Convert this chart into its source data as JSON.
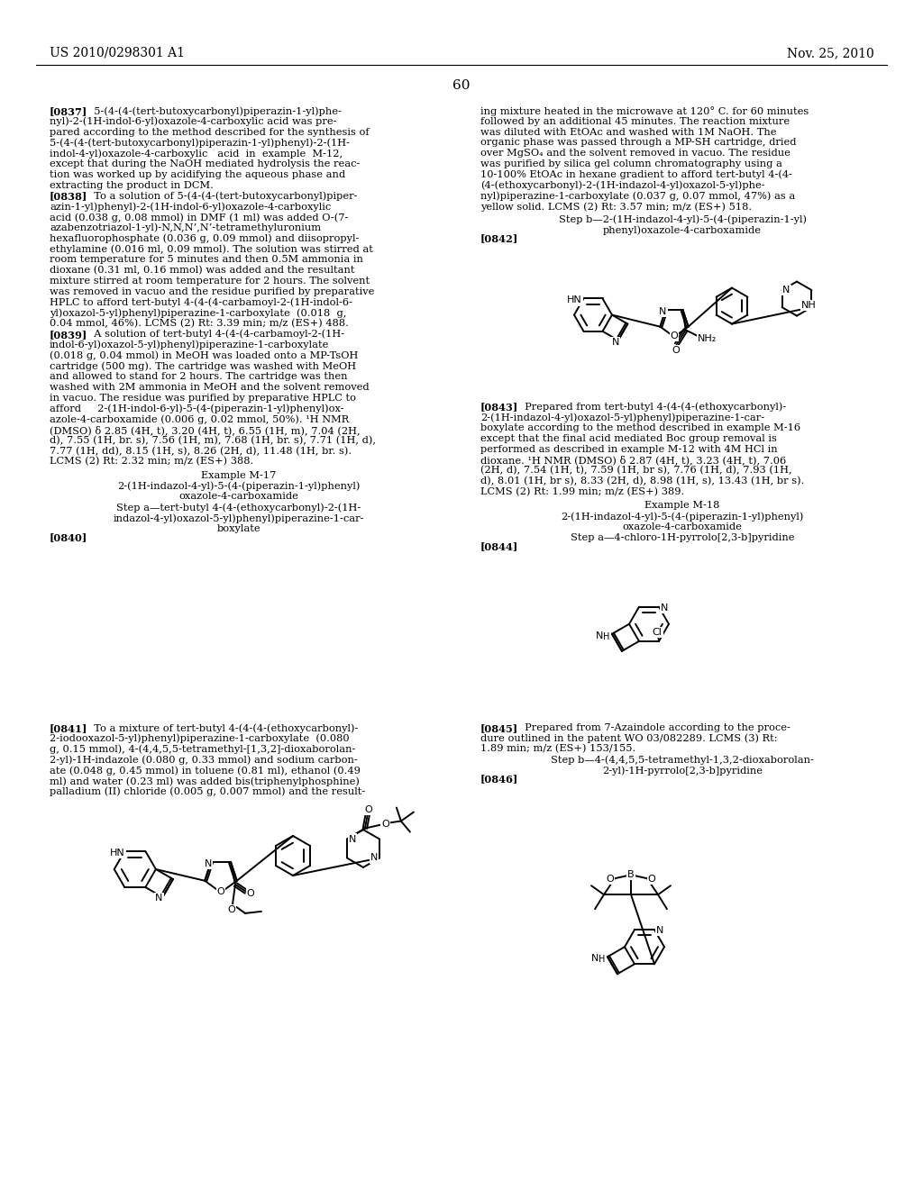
{
  "bg": "#ffffff",
  "header_left": "US 2010/0298301 A1",
  "header_right": "Nov. 25, 2010",
  "page_num": "60",
  "lh": 11.8,
  "fs": 8.2
}
